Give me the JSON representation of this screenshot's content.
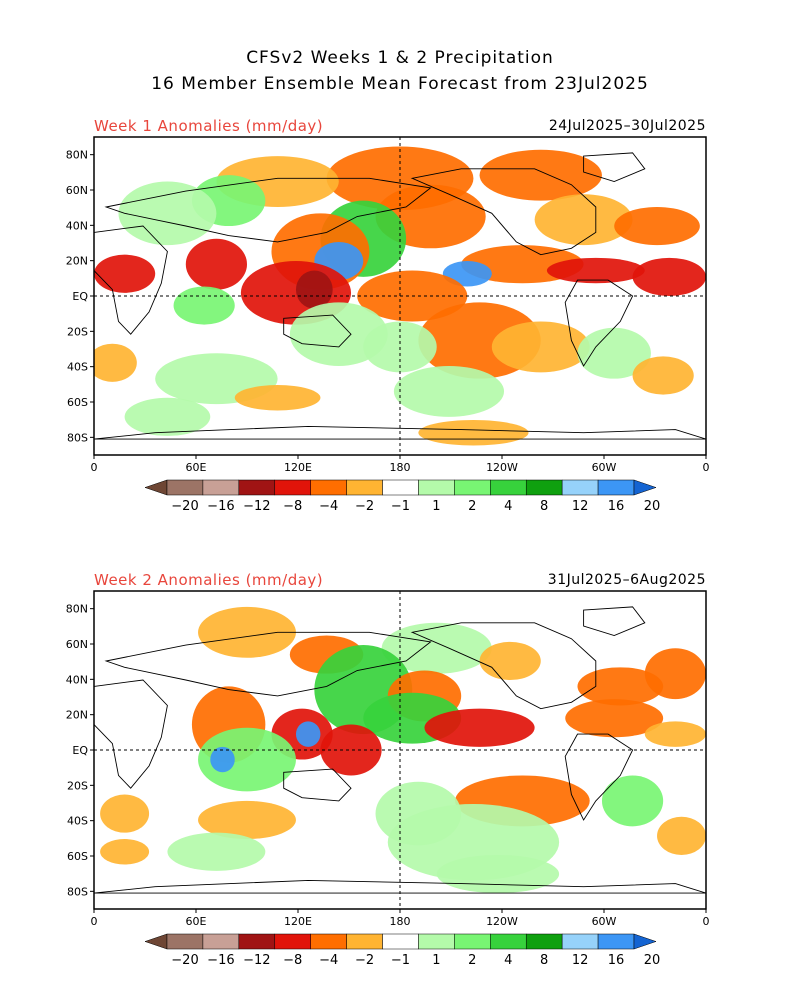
{
  "header": {
    "title_line1": "CFSv2 Weeks 1 & 2 Precipitation",
    "title_line2": "16 Member Ensemble Mean Forecast from 23Jul2025"
  },
  "panels": [
    {
      "title": "Week 1 Anomalies (mm/day)",
      "dates": "24Jul2025–30Jul2025"
    },
    {
      "title": "Week 2 Anomalies (mm/day)",
      "dates": "31Jul2025–6Aug2025"
    }
  ],
  "axes": {
    "lat_labels": [
      "80N",
      "60N",
      "40N",
      "20N",
      "EQ",
      "20S",
      "40S",
      "60S",
      "80S"
    ],
    "lon_labels": [
      "0",
      "60E",
      "120E",
      "180",
      "120W",
      "60W",
      "0"
    ]
  },
  "colorbar": {
    "labels": [
      "−20",
      "−16",
      "−12",
      "−8",
      "−4",
      "−2",
      "−1",
      "1",
      "2",
      "4",
      "8",
      "12",
      "16",
      "20"
    ],
    "colors": [
      "#6e4634",
      "#9c7466",
      "#c8a096",
      "#a01414",
      "#e1140a",
      "#ff6e00",
      "#ffb432",
      "#ffffff",
      "#b4faaa",
      "#78f573",
      "#37d23c",
      "#0fa00f",
      "#96d2fa",
      "#3c96f5",
      "#1464d2"
    ]
  },
  "map_colors": {
    "dry_light": "#ffb432",
    "dry_mid": "#ff6e00",
    "dry_strong": "#e1140a",
    "dry_extreme": "#a01414",
    "wet_light": "#b4faaa",
    "wet_mid": "#78f573",
    "wet_strong": "#37d23c",
    "wet_blue": "#3c96f5"
  }
}
